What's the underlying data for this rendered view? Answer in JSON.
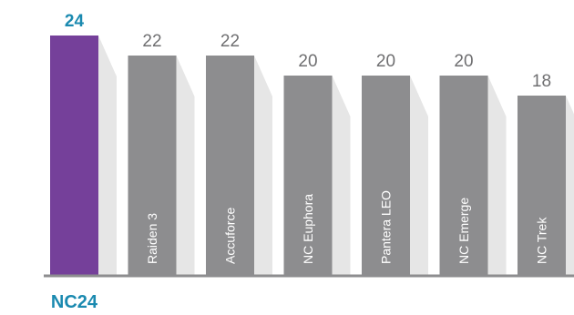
{
  "chart_data": {
    "type": "bar",
    "categories": [
      "NC24",
      "Raiden 3",
      "Accuforce",
      "NC Euphora",
      "Pantera LEO",
      "NC Emerge",
      "NC Trek"
    ],
    "values": [
      24,
      22,
      22,
      20,
      20,
      20,
      18
    ],
    "title": "",
    "xlabel": "",
    "ylabel": "",
    "ylim": [
      0,
      24
    ],
    "grid": false,
    "legend": "none",
    "highlight_index": 0
  },
  "colors": {
    "highlight_bar": "#75409a",
    "highlight_value": "#1b8ab0",
    "highlight_label": "#1b8ab0",
    "bar": "#8d8d8f",
    "bar_value": "#6f6f71",
    "bar_label": "#ffffff",
    "baseline": "#8d8d8f",
    "shadow": "#e6e6e6"
  }
}
